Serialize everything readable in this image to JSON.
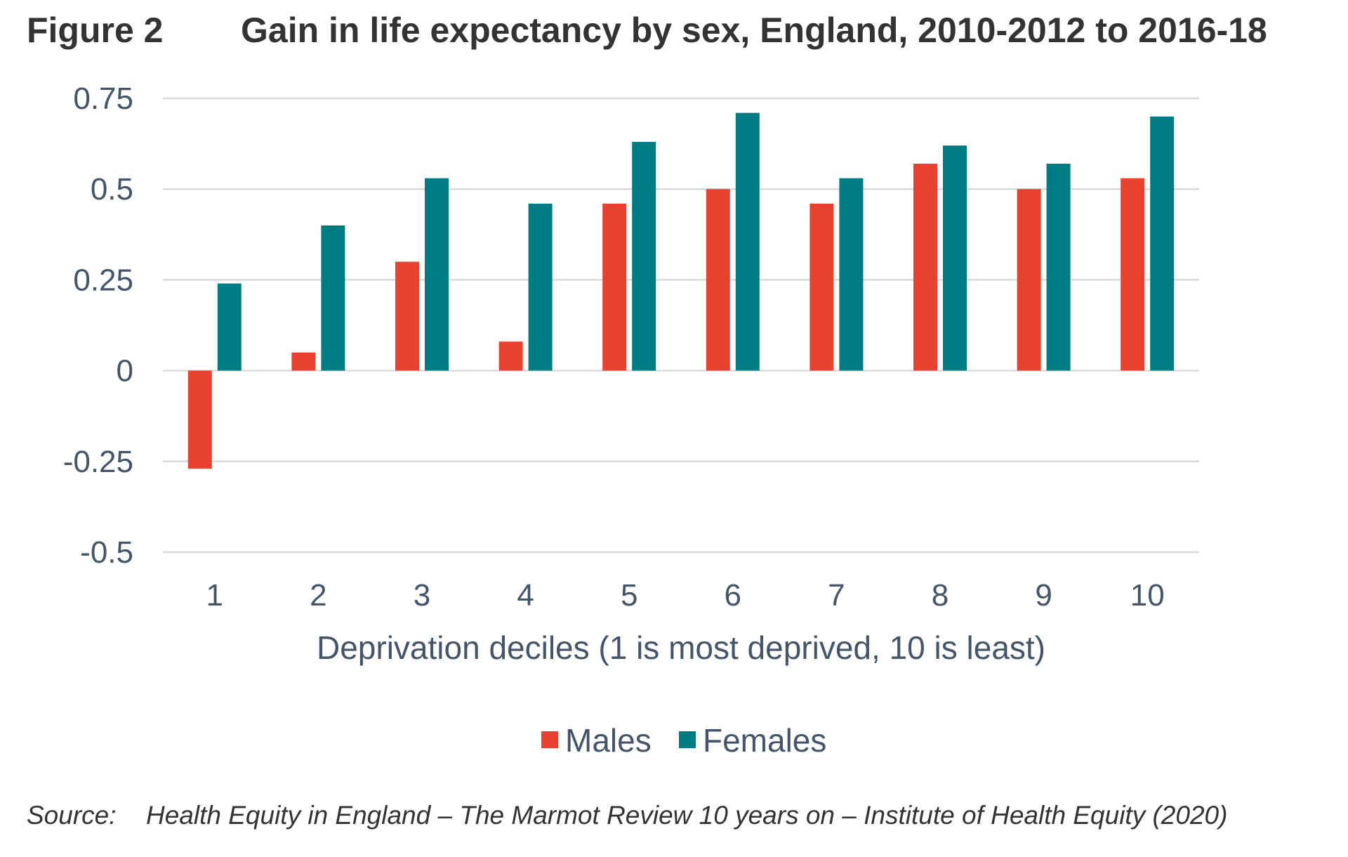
{
  "figure_label": "Figure 2",
  "title": "Gain in life expectancy by sex, England, 2010-2012 to 2016-18",
  "source": {
    "label": "Source:",
    "text": "Health Equity in England – The Marmot Review 10 years on – Institute of Health Equity (2020)"
  },
  "colors": {
    "males": "#E8412F",
    "females": "#007C85",
    "grid": "#D9D9D9",
    "axis_text": "#44546A"
  },
  "chart_data": {
    "type": "bar",
    "title": "Gain in life expectancy by sex, England, 2010-2012 to 2016-18",
    "xlabel": "Deprivation deciles (1 is most deprived, 10 is least)",
    "ylabel": "",
    "categories": [
      "1",
      "2",
      "3",
      "4",
      "5",
      "6",
      "7",
      "8",
      "9",
      "10"
    ],
    "ylim": [
      -0.5,
      0.75
    ],
    "yticks": [
      0.75,
      0.5,
      0.25,
      0,
      -0.25,
      -0.5
    ],
    "ytick_labels": [
      "0.75",
      "0.5",
      "0.25",
      "0",
      "-0.25",
      "-0.5"
    ],
    "grid": true,
    "legend_position": "bottom",
    "series": [
      {
        "name": "Males",
        "color": "#E8412F",
        "values": [
          -0.27,
          0.05,
          0.3,
          0.08,
          0.46,
          0.5,
          0.46,
          0.57,
          0.5,
          0.53
        ]
      },
      {
        "name": "Females",
        "color": "#007C85",
        "values": [
          0.24,
          0.4,
          0.53,
          0.46,
          0.63,
          0.71,
          0.53,
          0.62,
          0.57,
          0.7
        ]
      }
    ]
  }
}
